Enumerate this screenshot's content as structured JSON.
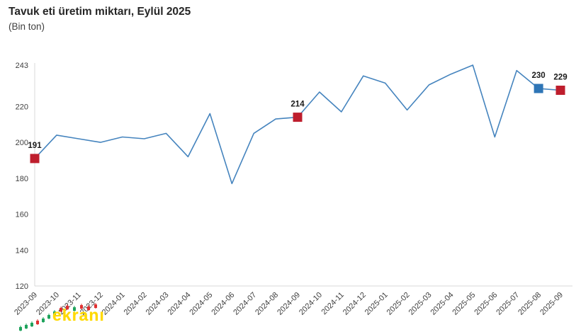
{
  "header": {
    "title": "Tavuk eti üretim miktarı, Eylül 2025",
    "subtitle": "(Bin ton)"
  },
  "watermark": {
    "text": "ekranı",
    "color": "#ffd900"
  },
  "chart_data": {
    "type": "line",
    "title": "Tavuk eti üretim miktarı, Eylül 2025",
    "xlabel": "",
    "ylabel": "Bin ton",
    "categories": [
      "2023-09",
      "2023-10",
      "2023-11",
      "2023-12",
      "2024-01",
      "2024-02",
      "2024-03",
      "2024-04",
      "2024-05",
      "2024-06",
      "2024-07",
      "2024-08",
      "2024-09",
      "2024-10",
      "2024-11",
      "2024-12",
      "2025-01",
      "2025-02",
      "2025-03",
      "2025-04",
      "2025-05",
      "2025-06",
      "2025-07",
      "2025-08",
      "2025-09"
    ],
    "values": [
      191,
      204,
      202,
      200,
      203,
      202,
      205,
      192,
      216,
      177,
      205,
      213,
      214,
      228,
      217,
      237,
      233,
      218,
      232,
      238,
      243,
      203,
      240,
      230,
      229
    ],
    "ylim": [
      120,
      243
    ],
    "yticks": [
      120,
      140,
      160,
      180,
      200,
      220,
      243
    ],
    "grid": false,
    "legend": "none",
    "line_color": "#4584be",
    "axis_color": "#d8d8d8",
    "highlighted_points": [
      {
        "index": 0,
        "category": "2023-09",
        "value": 191,
        "label": "191",
        "marker_color": "#be1e2d"
      },
      {
        "index": 12,
        "category": "2024-09",
        "value": 214,
        "label": "214",
        "marker_color": "#be1e2d"
      },
      {
        "index": 23,
        "category": "2025-08",
        "value": 230,
        "label": "230",
        "marker_color": "#2e75b6"
      },
      {
        "index": 24,
        "category": "2025-09",
        "value": 229,
        "label": "229",
        "marker_color": "#be1e2d"
      }
    ]
  }
}
